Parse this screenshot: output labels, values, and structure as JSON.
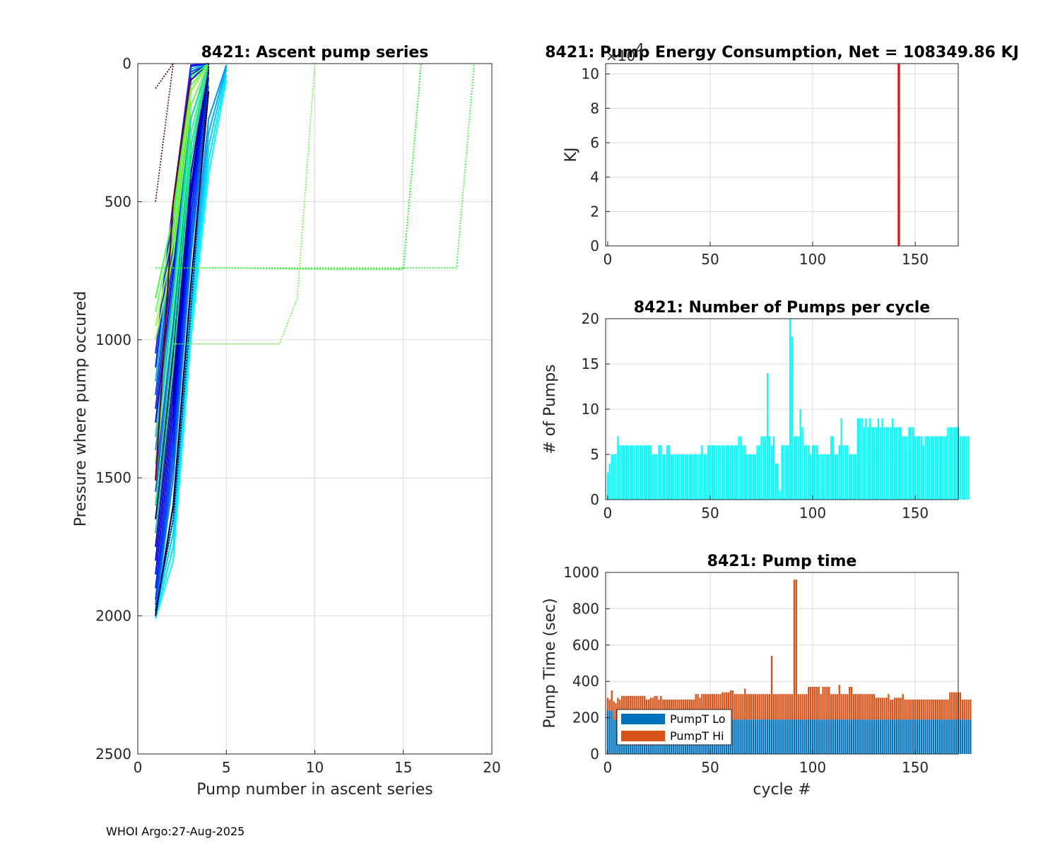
{
  "chart_data": [
    {
      "id": "ascent",
      "type": "line",
      "title": "8421: Ascent pump series",
      "xlabel": "Pump number in ascent series",
      "ylabel": "Pressure where pump occured",
      "xlim": [
        0,
        20
      ],
      "ylim": [
        0,
        2500
      ],
      "y_reversed": true,
      "xticks": [
        0,
        5,
        10,
        15,
        20
      ],
      "yticks": [
        0,
        500,
        1000,
        1500,
        2000,
        2500
      ],
      "xtick_labels": [
        "0",
        "5",
        "10",
        "15",
        "20"
      ],
      "ytick_labels": [
        "0",
        "500",
        "1000",
        "1500",
        "2000",
        "2500"
      ],
      "grid": true,
      "series": [
        {
          "color": "#00ffff",
          "x": [
            1,
            2,
            3,
            4,
            5
          ],
          "y": [
            2010,
            1800,
            1000,
            400,
            60
          ]
        },
        {
          "color": "#00e5ff",
          "x": [
            1,
            2,
            3,
            4,
            5
          ],
          "y": [
            2005,
            1750,
            950,
            350,
            40
          ]
        },
        {
          "color": "#00ccff",
          "x": [
            1,
            2,
            3,
            4,
            5
          ],
          "y": [
            1995,
            1700,
            900,
            300,
            20
          ]
        },
        {
          "color": "#00b0ff",
          "x": [
            1,
            2,
            3,
            4,
            5
          ],
          "y": [
            1990,
            1650,
            850,
            250,
            10
          ]
        },
        {
          "color": "#0096ff",
          "x": [
            1,
            2,
            3,
            4,
            5
          ],
          "y": [
            1985,
            1600,
            800,
            200,
            5
          ]
        },
        {
          "color": "#0080ff",
          "x": [
            1,
            2,
            3,
            4
          ],
          "y": [
            1980,
            1500,
            700,
            100
          ]
        },
        {
          "color": "#0060ff",
          "x": [
            1,
            2,
            3,
            4
          ],
          "y": [
            1960,
            1450,
            650,
            80
          ]
        },
        {
          "color": "#0040ff",
          "x": [
            1,
            2,
            3,
            4
          ],
          "y": [
            1940,
            1400,
            600,
            50
          ]
        },
        {
          "color": "#0020ff",
          "x": [
            1,
            2,
            3,
            4
          ],
          "y": [
            1900,
            1350,
            550,
            30
          ]
        },
        {
          "color": "#0000ff",
          "x": [
            1,
            2,
            3,
            4
          ],
          "y": [
            1850,
            1300,
            500,
            20
          ]
        },
        {
          "color": "#0000d0",
          "x": [
            1,
            2,
            3,
            4
          ],
          "y": [
            1800,
            1250,
            480,
            10
          ]
        },
        {
          "color": "#0000b0",
          "x": [
            1,
            2,
            3,
            4
          ],
          "y": [
            1750,
            1200,
            450,
            0
          ]
        },
        {
          "color": "#000090",
          "x": [
            1,
            2,
            3,
            4
          ],
          "y": [
            1700,
            1150,
            400,
            0
          ]
        },
        {
          "color": "#000070",
          "x": [
            1,
            2,
            3,
            4
          ],
          "y": [
            1650,
            1100,
            350,
            0
          ]
        },
        {
          "color": "#000050",
          "x": [
            1,
            2,
            3,
            4
          ],
          "y": [
            1600,
            1050,
            300,
            0
          ]
        },
        {
          "color": "#2040ff",
          "x": [
            1,
            2,
            3,
            4
          ],
          "y": [
            1550,
            1000,
            250,
            0
          ]
        },
        {
          "color": "#1050ff",
          "x": [
            1,
            2,
            3,
            4
          ],
          "y": [
            1500,
            950,
            200,
            0
          ]
        },
        {
          "color": "#3070ff",
          "x": [
            1,
            2,
            3,
            4
          ],
          "y": [
            1450,
            900,
            150,
            0
          ]
        },
        {
          "color": "#00a0e0",
          "x": [
            1,
            2,
            3,
            4
          ],
          "y": [
            1400,
            850,
            100,
            0
          ]
        },
        {
          "color": "#0070d0",
          "x": [
            1,
            2,
            3,
            4
          ],
          "y": [
            1350,
            800,
            80,
            0
          ]
        },
        {
          "color": "#0000ff",
          "x": [
            1,
            2,
            3,
            4
          ],
          "y": [
            1300,
            750,
            60,
            0
          ]
        },
        {
          "color": "#0030c0",
          "x": [
            1,
            2,
            3,
            4
          ],
          "y": [
            1250,
            700,
            40,
            0
          ]
        },
        {
          "color": "#0050e0",
          "x": [
            1,
            2,
            3,
            4
          ],
          "y": [
            1200,
            650,
            30,
            0
          ]
        },
        {
          "color": "#00c8c8",
          "x": [
            1,
            2,
            3,
            4
          ],
          "y": [
            1150,
            600,
            20,
            0
          ]
        },
        {
          "color": "#0010ff",
          "x": [
            1,
            2,
            3,
            4
          ],
          "y": [
            1100,
            550,
            10,
            0
          ]
        },
        {
          "color": "#2020ff",
          "x": [
            1,
            2,
            3,
            4
          ],
          "y": [
            1050,
            500,
            5,
            0
          ]
        },
        {
          "color": "#00ff80",
          "x": [
            1,
            2,
            3,
            4
          ],
          "y": [
            1600,
            1000,
            300,
            0
          ]
        },
        {
          "color": "#40ff80",
          "x": [
            1,
            2,
            3,
            4
          ],
          "y": [
            1450,
            900,
            250,
            0
          ]
        },
        {
          "color": "#80ff40",
          "x": [
            1,
            2,
            3,
            4
          ],
          "y": [
            1000,
            700,
            150,
            0
          ]
        },
        {
          "color": "#a0ff20",
          "x": [
            1,
            2,
            3,
            4
          ],
          "y": [
            950,
            650,
            100,
            0
          ]
        },
        {
          "color": "#60ff60",
          "x": [
            1,
            2,
            3,
            4
          ],
          "y": [
            900,
            600,
            80,
            0
          ]
        },
        {
          "color": "#40ff40",
          "x": [
            1,
            2,
            3,
            4
          ],
          "y": [
            850,
            550,
            50,
            0
          ]
        },
        {
          "color": "#20e0a0",
          "x": [
            1,
            2,
            3,
            4
          ],
          "y": [
            1350,
            850,
            200,
            0
          ]
        },
        {
          "color": "#30d0b0",
          "x": [
            1,
            2,
            3,
            4
          ],
          "y": [
            1700,
            1100,
            350,
            0
          ]
        },
        {
          "color": "#800000",
          "x": [
            1,
            2,
            3
          ],
          "y": [
            1510,
            500,
            50
          ]
        },
        {
          "color": "#000040",
          "x": [
            1,
            2,
            3,
            4
          ],
          "y": [
            2000,
            1600,
            800,
            100
          ]
        },
        {
          "color": "#000000",
          "x": [
            1,
            2,
            3,
            4
          ],
          "y": [
            1980,
            1650,
            900,
            0
          ],
          "dash": true
        },
        {
          "color": "#400000",
          "x": [
            1,
            2
          ],
          "y": [
            90,
            0
          ],
          "dash": true
        },
        {
          "color": "#600000",
          "x": [
            1,
            2
          ],
          "y": [
            500,
            0
          ],
          "dash": true
        },
        {
          "color": "#00ff00",
          "x": [
            1,
            5,
            11,
            15,
            16
          ],
          "y": [
            740,
            740,
            745,
            745,
            0
          ],
          "dash": true
        },
        {
          "color": "#30ff30",
          "x": [
            1,
            10,
            18,
            19
          ],
          "y": [
            740,
            740,
            740,
            0
          ],
          "dash": true
        },
        {
          "color": "#66ff33",
          "x": [
            2,
            8,
            9,
            10
          ],
          "y": [
            1015,
            1015,
            850,
            0
          ],
          "dash": true
        }
      ]
    },
    {
      "id": "energy",
      "type": "bar",
      "title": "8421: Pump Energy Consumption,  Net = 108349.86 KJ",
      "xlabel": "",
      "ylabel": "KJ",
      "xlim": [
        -1,
        171
      ],
      "ylim": [
        0,
        10.6
      ],
      "y_multiplier_label": "×10",
      "y_multiplier_exponent": "4",
      "xticks": [
        0,
        50,
        100,
        150
      ],
      "yticks": [
        0,
        2,
        4,
        6,
        8,
        10
      ],
      "xtick_labels": [
        "0",
        "50",
        "100",
        "150"
      ],
      "ytick_labels": [
        "0",
        "2",
        "4",
        "6",
        "8",
        "10"
      ],
      "grid": true,
      "bars": [
        {
          "x": 142,
          "value": 10.83,
          "color": "#ff0000"
        }
      ]
    },
    {
      "id": "npumps",
      "type": "bar",
      "title": "8421: Number of Pumps per cycle",
      "xlabel": "",
      "ylabel": "# of Pumps",
      "xlim": [
        -1,
        171
      ],
      "ylim": [
        0,
        20
      ],
      "xticks": [
        0,
        50,
        100,
        150
      ],
      "yticks": [
        0,
        5,
        10,
        15,
        20
      ],
      "xtick_labels": [
        "0",
        "50",
        "100",
        "150"
      ],
      "ytick_labels": [
        "0",
        "5",
        "10",
        "15",
        "20"
      ],
      "grid": true,
      "color": "#00ffff",
      "values": [
        3,
        4,
        5,
        5,
        5,
        7,
        6,
        6,
        6,
        6,
        6,
        6,
        6,
        6,
        6,
        6,
        6,
        6,
        6,
        6,
        6,
        6,
        5,
        5,
        5,
        6,
        6,
        5,
        5,
        6,
        6,
        5,
        5,
        5,
        5,
        5,
        5,
        5,
        5,
        5,
        5,
        5,
        5,
        5,
        5,
        5,
        6,
        5,
        5,
        6,
        6,
        6,
        6,
        6,
        6,
        6,
        6,
        6,
        6,
        6,
        6,
        6,
        6,
        6,
        7,
        7,
        6,
        6,
        5,
        5,
        5,
        5,
        5,
        6,
        6,
        7,
        7,
        7,
        14,
        7,
        6,
        7,
        4,
        4,
        1,
        6,
        6,
        6,
        6,
        20,
        18,
        7,
        7,
        7,
        10,
        8,
        6,
        6,
        6,
        5,
        6,
        6,
        6,
        5,
        5,
        5,
        5,
        5,
        5,
        7,
        7,
        5,
        5,
        6,
        9,
        6,
        6,
        6,
        5,
        5,
        5,
        5,
        9,
        9,
        9,
        8,
        9,
        8,
        9,
        8,
        8,
        8,
        9,
        8,
        9,
        8,
        8,
        8,
        8,
        9,
        8,
        8,
        8,
        8,
        7,
        7,
        7,
        8,
        8,
        8,
        7,
        7,
        7,
        7,
        6,
        7,
        7,
        7,
        7,
        7,
        7,
        7,
        7,
        7,
        7,
        7,
        8,
        8,
        8,
        8,
        8,
        8,
        7,
        7,
        7,
        7,
        7
      ],
      "value_x_start": 0
    },
    {
      "id": "pumptime",
      "type": "bar",
      "stacked": true,
      "title": "8421: Pump time",
      "xlabel": "cycle #",
      "ylabel": "Pump Time (sec)",
      "xlim": [
        -1,
        171
      ],
      "ylim": [
        0,
        1000
      ],
      "xticks": [
        0,
        50,
        100,
        150
      ],
      "yticks": [
        0,
        200,
        400,
        600,
        800,
        1000
      ],
      "xtick_labels": [
        "0",
        "50",
        "100",
        "150"
      ],
      "ytick_labels": [
        "0",
        "200",
        "400",
        "600",
        "800",
        "1000"
      ],
      "grid": true,
      "legend": {
        "position": "bottom-left",
        "entries": [
          {
            "label": "PumpT Lo",
            "color": "#0072bd"
          },
          {
            "label": "PumpT Hi",
            "color": "#d95319"
          }
        ]
      },
      "lo_value": 190,
      "lo_early_value": 240,
      "hi_totals_note": "total heights per cycle",
      "totals": [
        310,
        300,
        350,
        290,
        280,
        310,
        300,
        320,
        320,
        320,
        320,
        320,
        320,
        320,
        320,
        320,
        320,
        320,
        320,
        300,
        300,
        310,
        310,
        320,
        320,
        300,
        320,
        300,
        300,
        300,
        300,
        300,
        300,
        300,
        300,
        300,
        300,
        300,
        300,
        300,
        300,
        300,
        300,
        330,
        330,
        310,
        330,
        330,
        330,
        330,
        330,
        330,
        330,
        330,
        330,
        330,
        340,
        340,
        340,
        340,
        350,
        350,
        330,
        330,
        330,
        330,
        330,
        360,
        330,
        330,
        330,
        330,
        330,
        330,
        330,
        330,
        330,
        330,
        330,
        330,
        540,
        330,
        330,
        330,
        330,
        330,
        330,
        330,
        330,
        330,
        330,
        960,
        960,
        330,
        330,
        330,
        330,
        330,
        370,
        370,
        370,
        370,
        370,
        370,
        330,
        370,
        370,
        370,
        370,
        330,
        330,
        330,
        330,
        380,
        330,
        330,
        330,
        330,
        370,
        370,
        330,
        330,
        330,
        330,
        330,
        330,
        330,
        330,
        330,
        330,
        330,
        310,
        310,
        310,
        310,
        310,
        310,
        330,
        300,
        300,
        310,
        310,
        310,
        310,
        330,
        300,
        300,
        300,
        300,
        300,
        300,
        300,
        300,
        300,
        300,
        300,
        300,
        300,
        300,
        300,
        300,
        300,
        300,
        300,
        300,
        300,
        300,
        340,
        340,
        340,
        340,
        340,
        340,
        300,
        300,
        300,
        300,
        300
      ]
    }
  ],
  "footer": {
    "text": "WHOI Argo:27-Aug-2025"
  }
}
